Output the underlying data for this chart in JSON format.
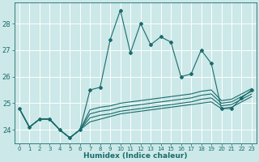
{
  "xlabel": "Humidex (Indice chaleur)",
  "background_color": "#cce8e8",
  "grid_color": "#ffffff",
  "line_color": "#1a6b6b",
  "x": [
    0,
    1,
    2,
    3,
    4,
    5,
    6,
    7,
    8,
    9,
    10,
    11,
    12,
    13,
    14,
    15,
    16,
    17,
    18,
    19,
    20,
    21,
    22,
    23
  ],
  "y_main": [
    24.8,
    24.1,
    24.4,
    24.4,
    24.0,
    23.7,
    24.0,
    25.5,
    25.6,
    27.4,
    28.5,
    26.9,
    28.0,
    27.2,
    27.5,
    27.3,
    26.0,
    26.1,
    27.0,
    26.5,
    24.8,
    24.8,
    25.2,
    25.5
  ],
  "y_env1": [
    24.8,
    24.1,
    24.4,
    24.4,
    24.0,
    23.7,
    24.0,
    24.3,
    24.4,
    24.5,
    24.6,
    24.65,
    24.7,
    24.75,
    24.8,
    24.85,
    24.9,
    24.95,
    25.0,
    25.05,
    24.8,
    24.85,
    25.05,
    25.25
  ],
  "y_env2": [
    24.8,
    24.1,
    24.4,
    24.4,
    24.0,
    23.7,
    24.0,
    24.45,
    24.55,
    24.6,
    24.7,
    24.75,
    24.8,
    24.85,
    24.9,
    24.95,
    25.0,
    25.05,
    25.15,
    25.2,
    24.9,
    24.95,
    25.15,
    25.35
  ],
  "y_env3": [
    24.8,
    24.1,
    24.4,
    24.4,
    24.0,
    23.7,
    24.0,
    24.6,
    24.7,
    24.75,
    24.85,
    24.9,
    24.95,
    25.0,
    25.05,
    25.1,
    25.15,
    25.2,
    25.3,
    25.35,
    25.0,
    25.05,
    25.25,
    25.45
  ],
  "y_env4": [
    24.8,
    24.1,
    24.4,
    24.4,
    24.0,
    23.7,
    24.0,
    24.75,
    24.85,
    24.9,
    25.0,
    25.05,
    25.1,
    25.15,
    25.2,
    25.25,
    25.3,
    25.35,
    25.45,
    25.5,
    25.1,
    25.15,
    25.35,
    25.55
  ],
  "ylim": [
    23.5,
    28.8
  ],
  "yticks": [
    24,
    25,
    26,
    27,
    28
  ],
  "xlim": [
    -0.5,
    23.5
  ],
  "xticks": [
    0,
    1,
    2,
    3,
    4,
    5,
    6,
    7,
    8,
    9,
    10,
    11,
    12,
    13,
    14,
    15,
    16,
    17,
    18,
    19,
    20,
    21,
    22,
    23
  ],
  "marker": "D",
  "marker_size": 2.0,
  "line_width": 0.8
}
